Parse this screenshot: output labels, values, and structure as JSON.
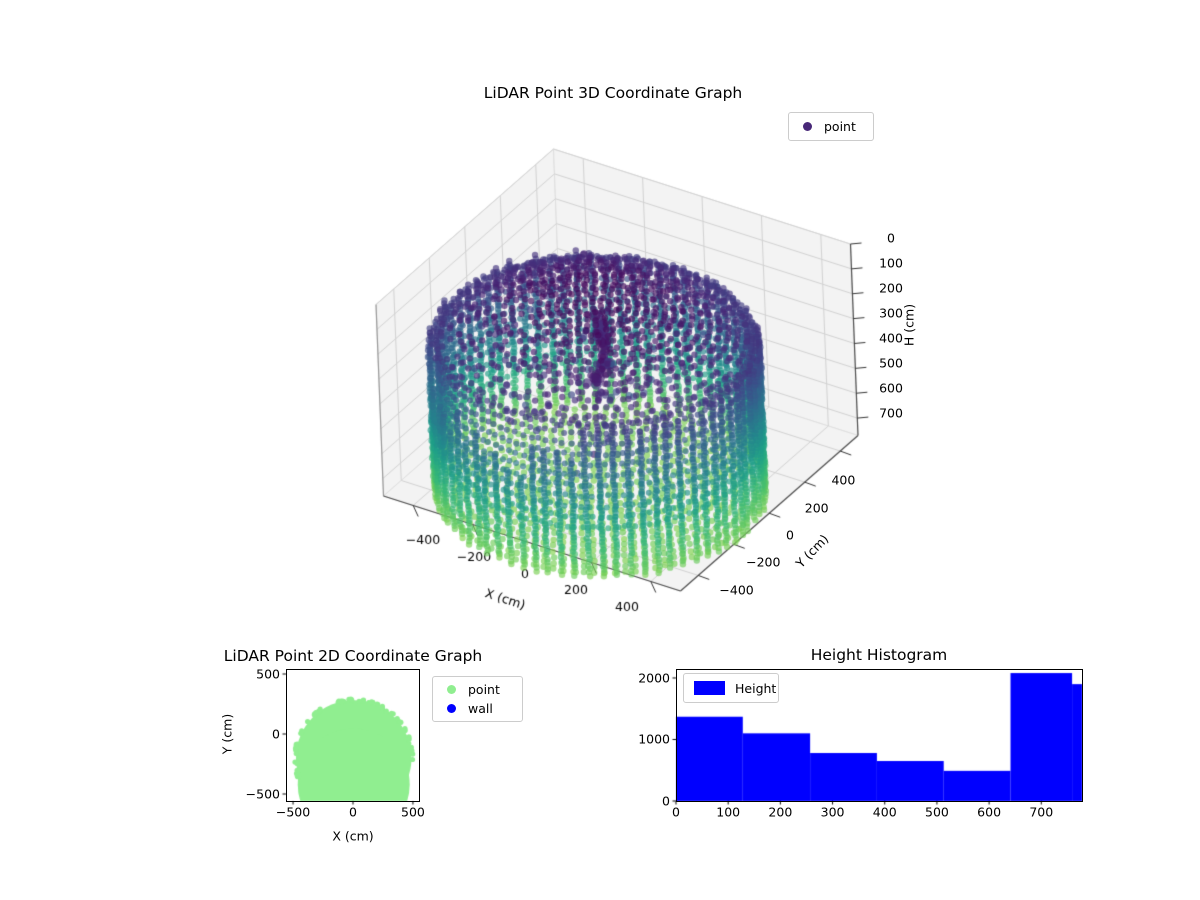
{
  "figure": {
    "background": "#ffffff"
  },
  "chart_data": [
    {
      "id": "lidar3d",
      "type": "scatter",
      "projection": "3d",
      "title": "LiDAR Point 3D Coordinate Graph",
      "xlabel": "X (cm)",
      "ylabel": "Y (cm)",
      "zlabel": "H (cm)",
      "xticks": [
        -400,
        -200,
        0,
        200,
        400
      ],
      "yticks": [
        400,
        200,
        0,
        -200,
        -400
      ],
      "zticks": [
        0,
        100,
        200,
        300,
        400,
        500,
        600,
        700
      ],
      "xlim": [
        -500,
        500
      ],
      "ylim": [
        -500,
        500
      ],
      "zlim_inverted_top_to_bottom": [
        0,
        770
      ],
      "legend": [
        {
          "label": "point",
          "marker_color": "#482878"
        }
      ],
      "colormap": "viridis",
      "color_by": "height H (cm), dark purple at H=0 ceiling to green at H=770 floor",
      "structure": {
        "shape": "cylindrical room scan point cloud",
        "cylinder_center_xy": [
          20,
          -150
        ],
        "cylinder_radius_cm": 470,
        "ceiling_dome_height_cm": [
          10,
          170
        ],
        "floor_height_cm": 770,
        "wall_columns": 74,
        "wall_ring_spacing_cm": 42,
        "notes": "dark purple ceiling dome with holes, viridis gradient wall stripes, scalloped green bottom fringe, scattered dark noise points and a dark blob cluster"
      },
      "pane_color": "#f3f3f3",
      "grid_color": "#d2d2d2"
    },
    {
      "id": "lidar2d",
      "type": "scatter",
      "title": "LiDAR Point 2D Coordinate Graph",
      "xlabel": "X (cm)",
      "ylabel": "Y (cm)",
      "xticks": [
        -500,
        0,
        500
      ],
      "yticks": [
        500,
        0,
        -500
      ],
      "xlim": [
        -558,
        550
      ],
      "ylim": [
        -558,
        542
      ],
      "series": [
        {
          "name": "point",
          "color": "#90ee90",
          "shape": "filled disc of dots",
          "disc_center": [
            6,
            -200
          ],
          "disc_radius": 482,
          "second_disc_center": [
            6,
            -420
          ],
          "second_disc_radius": 467
        },
        {
          "name": "wall",
          "color": "#0000ff",
          "visible_points": 0
        }
      ]
    },
    {
      "id": "height_histogram",
      "type": "bar",
      "title": "Height Histogram",
      "legend": [
        {
          "label": "Height",
          "color": "#0000ff"
        }
      ],
      "bar_color": "#0000ff",
      "bin_edges": [
        0,
        128,
        257,
        385,
        513,
        641,
        759,
        778
      ],
      "counts": [
        1370,
        1100,
        780,
        650,
        490,
        2080,
        1900
      ],
      "xticks": [
        0,
        100,
        200,
        300,
        400,
        500,
        600,
        700
      ],
      "yticks": [
        0,
        1000,
        2000
      ],
      "xlim": [
        0,
        778
      ],
      "ylim": [
        0,
        2146
      ]
    }
  ]
}
